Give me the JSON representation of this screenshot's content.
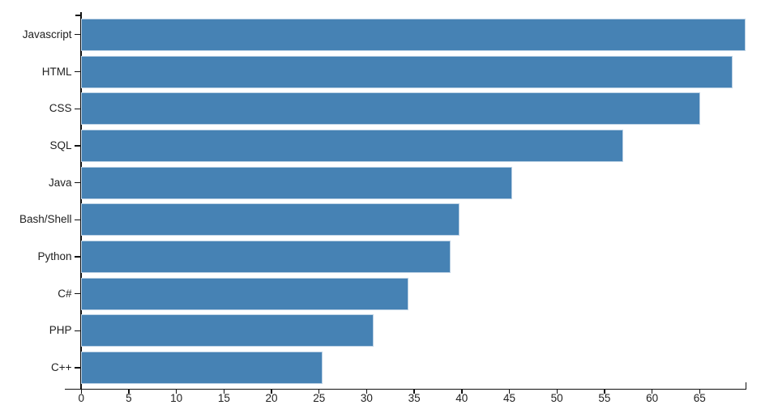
{
  "chart_data": {
    "type": "bar",
    "orientation": "horizontal",
    "title": "",
    "xlabel": "",
    "ylabel": "",
    "categories": [
      "Javascript",
      "HTML",
      "CSS",
      "SQL",
      "Java",
      "Bash/Shell",
      "Python",
      "C#",
      "PHP",
      "C++"
    ],
    "values": [
      69.8,
      68.5,
      65.1,
      57.0,
      45.3,
      39.8,
      38.8,
      34.4,
      30.7,
      25.4
    ],
    "x_ticks": [
      0,
      5,
      10,
      15,
      20,
      25,
      30,
      35,
      40,
      45,
      50,
      55,
      60,
      65
    ],
    "xlim": [
      0,
      69.8
    ],
    "grid": false,
    "legend": "none",
    "colors": {
      "bar_fill": "#4682b4",
      "bar_edge": "#bdd2e5",
      "axis": "#111111",
      "tick_label": "#1f1f1f",
      "background": "#ffffff"
    }
  }
}
